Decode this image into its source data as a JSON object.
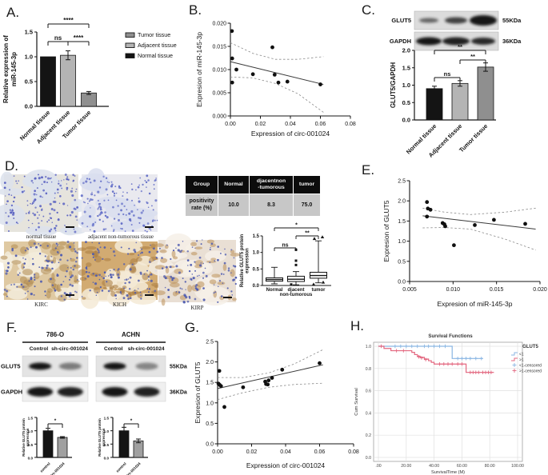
{
  "figure_bg": "#ffffff",
  "panel_labels": {
    "A": "A.",
    "B": "B.",
    "C": "C.",
    "D": "D.",
    "E": "E.",
    "F": "F.",
    "G": "G.",
    "H": "H."
  },
  "colors": {
    "normal": "#141414",
    "adjacent": "#b4b4b4",
    "tumor": "#8f8f8f",
    "survival_low": "#8ab6e3",
    "survival_high": "#e36880"
  },
  "table": {
    "headers": [
      "Group",
      "Normal",
      "djacentnon\n-tumorous",
      "tumor"
    ],
    "row": [
      "positivity\nrate (%)",
      "10.0",
      "8.3",
      "75.0"
    ],
    "header_bg": "#0c0c0c",
    "row_bg": "#c7c7c7"
  },
  "ihc": {
    "images": [
      {
        "caption": "normal tissue",
        "base": "#e6e4dd",
        "tint": "#dce2ec",
        "dot": "#5b63c2",
        "grain": "#cfd4e4",
        "style": "blue"
      },
      {
        "caption": "adjacent non-tumorous tissue",
        "base": "#e9e9ef",
        "tint": "#d9deee",
        "dot": "#6570c8",
        "grain": "#d8dcea",
        "style": "blue"
      },
      {
        "caption": "KIRC",
        "base": "#dfc9a2",
        "tint": "#f3ecdc",
        "dot": "#4f5cb0",
        "grain": "#b08a50",
        "style": "brown"
      },
      {
        "caption": "KICH",
        "base": "#d2ab72",
        "tint": "#f4ead6",
        "dot": "#4f5cb0",
        "grain": "#a97c3f",
        "style": "brown"
      },
      {
        "caption": "KIRP",
        "base": "#e9dfd4",
        "tint": "#f6f0e8",
        "dot": "#4f5cb0",
        "grain": "#bb9057",
        "style": "brown"
      }
    ]
  },
  "western_blot_C": {
    "rows": [
      {
        "label": "GLUT5",
        "kda": "55KDa",
        "bands": [
          0.6,
          0.78,
          1.0
        ],
        "band_w": [
          24,
          28,
          34
        ],
        "band_h": [
          6,
          8,
          13
        ]
      },
      {
        "label": "GAPDH",
        "kda": "36KDa",
        "bands": [
          1.0,
          0.95,
          0.9
        ],
        "band_w": [
          32,
          34,
          30
        ],
        "band_h": [
          10,
          10,
          9
        ]
      }
    ]
  },
  "western_blot_F": {
    "cell_lines": [
      "786-O",
      "ACHN"
    ],
    "lanes": [
      "Control",
      "sh-circ-001024"
    ],
    "rows": [
      {
        "label": "GLUT5",
        "kda": "55KDa",
        "intensity": [
          [
            1.0,
            0.5
          ],
          [
            1.0,
            0.45
          ]
        ]
      },
      {
        "label": "GAPDH",
        "kda": "36KDa",
        "intensity": [
          [
            1.0,
            0.95
          ],
          [
            1.0,
            0.95
          ]
        ]
      }
    ]
  },
  "chart_data": [
    {
      "panel": "A",
      "type": "bar",
      "ylabel": "Relative expression of\nmiR-145-3p",
      "categories": [
        "Normal tissue",
        "Adjacent tissue",
        "Tumor tissue"
      ],
      "values": [
        1.0,
        1.03,
        0.27
      ],
      "errors": [
        0,
        0.09,
        0.03
      ],
      "bar_colors": [
        "#141414",
        "#b4b4b4",
        "#8f8f8f"
      ],
      "yticks": [
        0,
        0.5,
        1.0,
        1.5
      ],
      "ylim": [
        0,
        1.5
      ],
      "significance": [
        {
          "a": 0,
          "b": 1,
          "label": "ns"
        },
        {
          "a": 1,
          "b": 2,
          "label": "****"
        },
        {
          "a": 0,
          "b": 2,
          "label": "****"
        }
      ],
      "legend": {
        "position": "right",
        "entries": [
          {
            "label": "Tumor tissue",
            "color": "#8f8f8f"
          },
          {
            "label": "Adjacent tissue",
            "color": "#b4b4b4"
          },
          {
            "label": "Normal tissue",
            "color": "#141414"
          }
        ]
      }
    },
    {
      "panel": "B",
      "type": "scatter",
      "xlabel": "Expression of circ-001024",
      "ylabel": "Expresion of miR-145-3p",
      "xlim": [
        0,
        0.08
      ],
      "ylim": [
        0,
        0.02
      ],
      "xticks": [
        0,
        0.02,
        0.04,
        0.06,
        0.08
      ],
      "xtick_labels": [
        "0.00",
        "0.02",
        "0.04",
        "0.06",
        "0.08"
      ],
      "yticks": [
        0,
        0.005,
        0.01,
        0.015,
        0.02
      ],
      "ytick_labels": [
        "0.000",
        "0.005",
        "0.010",
        "0.015",
        "0.020"
      ],
      "points": [
        [
          0.001,
          0.0183
        ],
        [
          0.0012,
          0.0124
        ],
        [
          0.004,
          0.01
        ],
        [
          0.0012,
          0.0072
        ],
        [
          0.015,
          0.009
        ],
        [
          0.028,
          0.0148
        ],
        [
          0.0295,
          0.0089
        ],
        [
          0.032,
          0.0072
        ],
        [
          0.038,
          0.0074
        ],
        [
          0.06,
          0.0068
        ]
      ],
      "trend": [
        [
          0,
          0.0117
        ],
        [
          0.062,
          0.0068
        ]
      ],
      "ci_upper": [
        [
          0,
          0.0158
        ],
        [
          0.015,
          0.0135
        ],
        [
          0.03,
          0.0122
        ],
        [
          0.045,
          0.0122
        ],
        [
          0.062,
          0.0128
        ]
      ],
      "ci_lower": [
        [
          0,
          0.0084
        ],
        [
          0.015,
          0.0082
        ],
        [
          0.03,
          0.007
        ],
        [
          0.045,
          0.0048
        ],
        [
          0.062,
          0.0008
        ]
      ]
    },
    {
      "panel": "C",
      "type": "bar",
      "ylabel": "GLUT5/GAPDH",
      "categories": [
        "Normal tissue",
        "Adjacent tissue",
        "Tumor tissue"
      ],
      "values": [
        0.9,
        1.05,
        1.52
      ],
      "errors": [
        0.07,
        0.08,
        0.12
      ],
      "bar_colors": [
        "#141414",
        "#b4b4b4",
        "#8f8f8f"
      ],
      "yticks": [
        0,
        0.5,
        1.0,
        1.5,
        2.0
      ],
      "ylim": [
        0,
        2.0
      ],
      "significance": [
        {
          "a": 0,
          "b": 1,
          "label": "ns"
        },
        {
          "a": 1,
          "b": 2,
          "label": "**"
        },
        {
          "a": 0,
          "b": 2,
          "label": "**"
        }
      ]
    },
    {
      "panel": "D_box",
      "type": "box",
      "ylabel": "Relative GLUT5 protein\nexpression",
      "categories": [
        "Normal",
        "djacent\nnon-tumorous",
        "tumor"
      ],
      "yticks": [
        0,
        0.5,
        1.0,
        1.5
      ],
      "ylim": [
        0,
        1.5
      ],
      "boxes": [
        {
          "whisker_low": 0.05,
          "q1": 0.13,
          "median": 0.18,
          "q3": 0.23,
          "whisker_high": 0.55,
          "marker": "square",
          "outliers_high": [],
          "outliers_low": []
        },
        {
          "whisker_low": 0.02,
          "q1": 0.12,
          "median": 0.19,
          "q3": 0.28,
          "whisker_high": 0.42,
          "marker": "square",
          "outliers_high": [
            0.62,
            0.75,
            1.08
          ],
          "outliers_low": [
            0.03
          ]
        },
        {
          "whisker_low": 0.08,
          "q1": 0.22,
          "median": 0.3,
          "q3": 0.4,
          "whisker_high": 1.35,
          "marker": "triangle",
          "outliers_high": [
            1.42,
            1.47
          ],
          "outliers_low": [
            0.04,
            0.1
          ]
        }
      ],
      "significance": [
        {
          "a": 0,
          "b": 1,
          "label": "ns"
        },
        {
          "a": 1,
          "b": 2,
          "label": "**"
        },
        {
          "a": 0,
          "b": 2,
          "label": "*"
        }
      ]
    },
    {
      "panel": "E",
      "type": "scatter",
      "xlabel": "Expresion of miR-145-3p",
      "ylabel": "Expresion of GLUT5",
      "xlim": [
        0.005,
        0.02
      ],
      "ylim": [
        0,
        2.5
      ],
      "xticks": [
        0.005,
        0.01,
        0.015,
        0.02
      ],
      "xtick_labels": [
        "0.005",
        "0.010",
        "0.015",
        "0.020"
      ],
      "yticks": [
        0,
        0.5,
        1.0,
        1.5,
        2.0,
        2.5
      ],
      "ytick_labels": [
        "0.0",
        "0.5",
        "1.0",
        "1.5",
        "2.0",
        "2.5"
      ],
      "points": [
        [
          0.007,
          1.97
        ],
        [
          0.0071,
          1.81
        ],
        [
          0.0074,
          1.78
        ],
        [
          0.007,
          1.61
        ],
        [
          0.0088,
          1.45
        ],
        [
          0.009,
          1.42
        ],
        [
          0.0091,
          1.37
        ],
        [
          0.0101,
          0.9
        ],
        [
          0.0125,
          1.4
        ],
        [
          0.0147,
          1.53
        ],
        [
          0.0183,
          1.43
        ]
      ],
      "trend": [
        [
          0.0065,
          1.63
        ],
        [
          0.0195,
          1.3
        ]
      ],
      "ci_upper": [
        [
          0.0065,
          1.82
        ],
        [
          0.009,
          1.72
        ],
        [
          0.012,
          1.66
        ],
        [
          0.016,
          1.72
        ],
        [
          0.0195,
          1.82
        ]
      ],
      "ci_lower": [
        [
          0.0065,
          1.33
        ],
        [
          0.009,
          1.34
        ],
        [
          0.012,
          1.3
        ],
        [
          0.016,
          1.05
        ],
        [
          0.0195,
          0.78
        ]
      ]
    },
    {
      "panel": "F_786O",
      "type": "bar",
      "ylabel": "Relative GLUT5 protein\nexpression",
      "categories": [
        "control",
        "sh-circ-001024"
      ],
      "values": [
        1.0,
        0.75
      ],
      "errors": [
        0.09,
        0.03
      ],
      "bar_colors": [
        "#141414",
        "#a0a0a0"
      ],
      "yticks": [
        0,
        0.5,
        1.0,
        1.5
      ],
      "ylim": [
        0,
        1.5
      ],
      "significance": [
        {
          "a": 0,
          "b": 1,
          "label": "*"
        }
      ]
    },
    {
      "panel": "F_ACHN",
      "type": "bar",
      "ylabel": "Relative GLUT5 protein\nexpression",
      "categories": [
        "control",
        "sh-circ-001024"
      ],
      "values": [
        1.0,
        0.62
      ],
      "errors": [
        0.13,
        0.07
      ],
      "bar_colors": [
        "#141414",
        "#a0a0a0"
      ],
      "yticks": [
        0,
        0.5,
        1.0,
        1.5
      ],
      "ylim": [
        0,
        1.5
      ],
      "significance": [
        {
          "a": 0,
          "b": 1,
          "label": "*"
        }
      ]
    },
    {
      "panel": "G",
      "type": "scatter",
      "xlabel": "Expression of circ-001024",
      "ylabel": "Expresion of GLUT5",
      "xlim": [
        0,
        0.08
      ],
      "ylim": [
        0,
        2.5
      ],
      "xticks": [
        0,
        0.02,
        0.04,
        0.06,
        0.08
      ],
      "xtick_labels": [
        "0.00",
        "0.02",
        "0.04",
        "0.06",
        "0.08"
      ],
      "yticks": [
        0,
        0.5,
        1.0,
        1.5,
        2.0,
        2.5
      ],
      "ytick_labels": [
        "0.0",
        "0.5",
        "1.0",
        "1.5",
        "2.0",
        "2.5"
      ],
      "points": [
        [
          0.001,
          1.78
        ],
        [
          0.0005,
          1.47
        ],
        [
          0.0012,
          1.44
        ],
        [
          0.002,
          1.41
        ],
        [
          0.004,
          0.9
        ],
        [
          0.015,
          1.38
        ],
        [
          0.028,
          1.52
        ],
        [
          0.0285,
          1.46
        ],
        [
          0.0295,
          1.45
        ],
        [
          0.03,
          1.55
        ],
        [
          0.032,
          1.61
        ],
        [
          0.038,
          1.81
        ],
        [
          0.06,
          1.97
        ]
      ],
      "trend": [
        [
          0,
          1.35
        ],
        [
          0.062,
          1.93
        ]
      ],
      "ci_upper": [
        [
          0,
          1.62
        ],
        [
          0.015,
          1.62
        ],
        [
          0.03,
          1.73
        ],
        [
          0.045,
          1.95
        ],
        [
          0.062,
          2.3
        ]
      ],
      "ci_lower": [
        [
          0,
          1.08
        ],
        [
          0.015,
          1.25
        ],
        [
          0.03,
          1.38
        ],
        [
          0.045,
          1.45
        ],
        [
          0.062,
          1.48
        ]
      ]
    },
    {
      "panel": "H",
      "type": "survival",
      "title": "Survival Functions",
      "xlabel": "SurvivalTime (M)",
      "ylabel": "Cum Survival",
      "xlim": [
        0,
        100
      ],
      "ylim": [
        0,
        1
      ],
      "xticks": [
        0,
        20,
        40,
        60,
        80,
        100
      ],
      "xtick_labels": [
        ".00",
        "20.00",
        "40.00",
        "60.00",
        "80.00",
        "100.00"
      ],
      "yticks": [
        0,
        0.2,
        0.4,
        0.6,
        0.8,
        1.0
      ],
      "ytick_labels": [
        "0.0",
        "0.2",
        "0.4",
        "0.6",
        "0.8",
        "1.0"
      ],
      "legend_title": "GLUT5",
      "legend_entries": [
        "<1",
        ">1",
        "<1-censored",
        ">1-censored"
      ],
      "series": [
        {
          "name": "<1",
          "color": "#8ab6e3",
          "steps": [
            [
              0,
              1.0
            ],
            [
              53,
              0.89
            ],
            [
              75,
              0.89
            ]
          ],
          "censored": [
            [
              12,
              1.0
            ],
            [
              16,
              1.0
            ],
            [
              20,
              1.0
            ],
            [
              24,
              1.0
            ],
            [
              28,
              1.0
            ],
            [
              33,
              1.0
            ],
            [
              36,
              1.0
            ],
            [
              40,
              1.0
            ],
            [
              44,
              1.0
            ],
            [
              48,
              1.0
            ],
            [
              57,
              0.89
            ],
            [
              60,
              0.89
            ],
            [
              63,
              0.89
            ],
            [
              66,
              0.89
            ],
            [
              70,
              0.89
            ],
            [
              74,
              0.89
            ]
          ]
        },
        {
          "name": ">1",
          "color": "#e36880",
          "steps": [
            [
              0,
              1.0
            ],
            [
              4,
              0.98
            ],
            [
              9,
              0.96
            ],
            [
              24,
              0.945
            ],
            [
              26,
              0.925
            ],
            [
              28,
              0.91
            ],
            [
              30,
              0.9
            ],
            [
              33,
              0.885
            ],
            [
              36,
              0.87
            ],
            [
              38,
              0.855
            ],
            [
              40,
              0.84
            ],
            [
              63,
              0.765
            ],
            [
              83,
              0.765
            ]
          ],
          "censored": [
            [
              2,
              1.0
            ],
            [
              13,
              0.96
            ],
            [
              18,
              0.96
            ],
            [
              29,
              0.905
            ],
            [
              31,
              0.895
            ],
            [
              34,
              0.88
            ],
            [
              44,
              0.84
            ],
            [
              47,
              0.84
            ],
            [
              50,
              0.84
            ],
            [
              53,
              0.84
            ],
            [
              57,
              0.84
            ],
            [
              60,
              0.84
            ],
            [
              66,
              0.765
            ],
            [
              68,
              0.765
            ],
            [
              70,
              0.765
            ],
            [
              72,
              0.765
            ],
            [
              75,
              0.765
            ],
            [
              77,
              0.765
            ],
            [
              79,
              0.765
            ],
            [
              81,
              0.765
            ]
          ]
        }
      ]
    }
  ]
}
